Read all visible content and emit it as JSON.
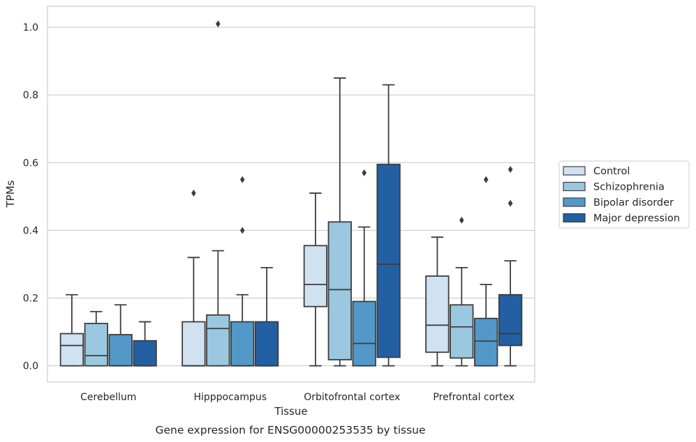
{
  "chart_data": {
    "type": "box",
    "xlabel": "Tissue",
    "ylabel": "TPMs",
    "caption": "Gene expression for ENSG00000253535 by tissue",
    "ylim": [
      -0.048,
      1.062
    ],
    "yticks": [
      0.0,
      0.2,
      0.4,
      0.6,
      0.8,
      1.0
    ],
    "ytick_labels": [
      "0.0",
      "0.2",
      "0.4",
      "0.6",
      "0.8",
      "1.0"
    ],
    "grid": "horizontal",
    "legend_position": "right",
    "categories": [
      "Cerebellum",
      "Hipppocampus",
      "Orbitofrontal cortex",
      "Prefrontal cortex"
    ],
    "series": [
      {
        "name": "Control",
        "color": "#d0e1f2",
        "boxes": [
          {
            "whisker_low": 0.0,
            "q1": 0.0,
            "median": 0.06,
            "q3": 0.095,
            "whisker_high": 0.21,
            "outliers": []
          },
          {
            "whisker_low": 0.0,
            "q1": 0.0,
            "median": 0.0,
            "q3": 0.13,
            "whisker_high": 0.32,
            "outliers": [
              0.51
            ]
          },
          {
            "whisker_low": 0.0,
            "q1": 0.175,
            "median": 0.24,
            "q3": 0.355,
            "whisker_high": 0.51,
            "outliers": []
          },
          {
            "whisker_low": 0.0,
            "q1": 0.04,
            "median": 0.12,
            "q3": 0.265,
            "whisker_high": 0.38,
            "outliers": []
          }
        ]
      },
      {
        "name": "Schizophrenia",
        "color": "#9ac8e0",
        "boxes": [
          {
            "whisker_low": 0.0,
            "q1": 0.0,
            "median": 0.03,
            "q3": 0.125,
            "whisker_high": 0.16,
            "outliers": []
          },
          {
            "whisker_low": 0.0,
            "q1": 0.0,
            "median": 0.11,
            "q3": 0.15,
            "whisker_high": 0.34,
            "outliers": [
              1.01
            ]
          },
          {
            "whisker_low": 0.0,
            "q1": 0.018,
            "median": 0.225,
            "q3": 0.425,
            "whisker_high": 0.85,
            "outliers": []
          },
          {
            "whisker_low": 0.0,
            "q1": 0.023,
            "median": 0.115,
            "q3": 0.18,
            "whisker_high": 0.29,
            "outliers": [
              0.43
            ]
          }
        ]
      },
      {
        "name": "Bipolar disorder",
        "color": "#5299c9",
        "boxes": [
          {
            "whisker_low": 0.0,
            "q1": 0.0,
            "median": 0.0,
            "q3": 0.092,
            "whisker_high": 0.18,
            "outliers": []
          },
          {
            "whisker_low": 0.0,
            "q1": 0.0,
            "median": 0.0,
            "q3": 0.13,
            "whisker_high": 0.21,
            "outliers": [
              0.4,
              0.55
            ]
          },
          {
            "whisker_low": 0.0,
            "q1": 0.0,
            "median": 0.066,
            "q3": 0.19,
            "whisker_high": 0.41,
            "outliers": [
              0.57
            ]
          },
          {
            "whisker_low": 0.0,
            "q1": 0.0,
            "median": 0.073,
            "q3": 0.14,
            "whisker_high": 0.24,
            "outliers": [
              0.55
            ]
          }
        ]
      },
      {
        "name": "Major depression",
        "color": "#2260a3",
        "boxes": [
          {
            "whisker_low": 0.0,
            "q1": 0.0,
            "median": 0.0,
            "q3": 0.074,
            "whisker_high": 0.13,
            "outliers": []
          },
          {
            "whisker_low": 0.0,
            "q1": 0.0,
            "median": 0.0,
            "q3": 0.13,
            "whisker_high": 0.29,
            "outliers": []
          },
          {
            "whisker_low": 0.0,
            "q1": 0.025,
            "median": 0.3,
            "q3": 0.595,
            "whisker_high": 0.83,
            "outliers": []
          },
          {
            "whisker_low": 0.0,
            "q1": 0.06,
            "median": 0.095,
            "q3": 0.21,
            "whisker_high": 0.31,
            "outliers": [
              0.48,
              0.58
            ]
          }
        ]
      }
    ]
  }
}
